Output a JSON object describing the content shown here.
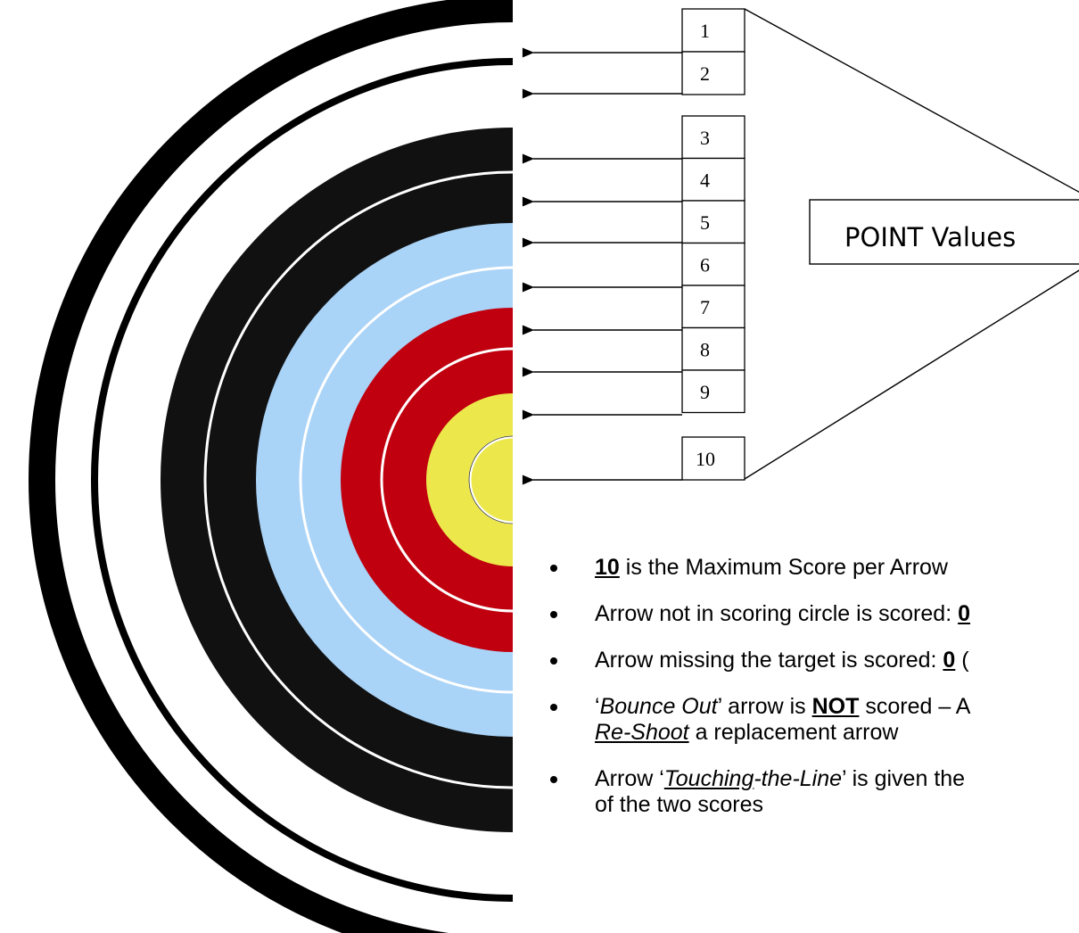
{
  "target": {
    "ring_colors": [
      "#ffffff",
      "#ffffff",
      "#111111",
      "#111111",
      "#a9d3f7",
      "#a9d3f7",
      "#c0000e",
      "#c0000e",
      "#ece84c",
      "#ece84c"
    ],
    "divider_color": "#ffffff",
    "outer_stroke_color": "#000000"
  },
  "score_labels": [
    "1",
    "2",
    "3",
    "4",
    "5",
    "6",
    "7",
    "8",
    "9",
    "10"
  ],
  "callout": {
    "label": "POINT Values"
  },
  "rules": [
    {
      "parts": [
        {
          "text": "10",
          "b": true,
          "u": true
        },
        {
          "text": " is the Maximum Score per Arrow"
        }
      ]
    },
    {
      "parts": [
        {
          "text": "Arrow not in scoring circle is scored: "
        },
        {
          "text": "0",
          "b": true,
          "u": true
        }
      ]
    },
    {
      "parts": [
        {
          "text": "Arrow missing the target is scored: "
        },
        {
          "text": "0",
          "b": true,
          "u": true
        },
        {
          "text": " ("
        }
      ]
    },
    {
      "parts": [
        {
          "text": "‘"
        },
        {
          "text": "Bounce Out",
          "i": true
        },
        {
          "text": "’ arrow is "
        },
        {
          "text": "NOT",
          "b": true,
          "u": true
        },
        {
          "text": " scored – A"
        }
      ],
      "line2": [
        {
          "text": "Re-Shoot",
          "i": true,
          "u": true
        },
        {
          "text": " a replacement arrow"
        }
      ]
    },
    {
      "parts": [
        {
          "text": "Arrow ‘"
        },
        {
          "text": "Touching",
          "i": true,
          "u": true
        },
        {
          "text": "-the-Line",
          "i": true
        },
        {
          "text": "’ is given the"
        }
      ],
      "line2": [
        {
          "text": "of the two scores"
        }
      ]
    }
  ]
}
